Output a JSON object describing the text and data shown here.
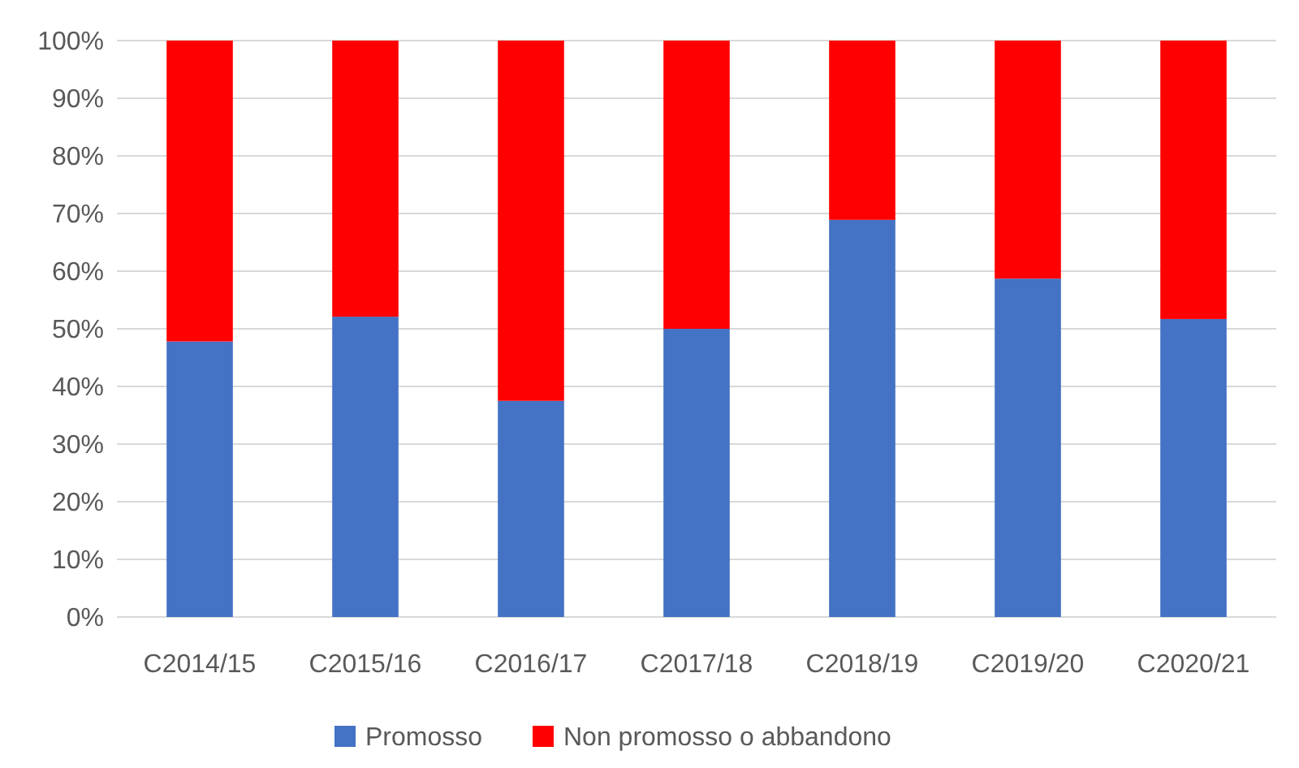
{
  "chart_data": {
    "type": "bar",
    "stacked": true,
    "categories": [
      "C2014/15",
      "C2015/16",
      "C2016/17",
      "C2017/18",
      "C2018/19",
      "C2019/20",
      "C2020/21"
    ],
    "series": [
      {
        "name": "Promosso",
        "color": "#4472c4",
        "values": [
          47.8,
          52.1,
          37.5,
          50,
          68.9,
          58.7,
          51.7
        ]
      },
      {
        "name": "Non promosso o abbandono",
        "color": "#ff0000",
        "values": [
          52.2,
          47.9,
          62.5,
          50,
          31.1,
          41.3,
          48.3
        ]
      }
    ],
    "ylim": [
      0,
      100
    ],
    "yticks": [
      {
        "value": 0,
        "label": "0%"
      },
      {
        "value": 10,
        "label": "10%"
      },
      {
        "value": 20,
        "label": "20%"
      },
      {
        "value": 30,
        "label": "30%"
      },
      {
        "value": 40,
        "label": "40%"
      },
      {
        "value": 50,
        "label": "50%"
      },
      {
        "value": 60,
        "label": "60%"
      },
      {
        "value": 70,
        "label": "70%"
      },
      {
        "value": 80,
        "label": "80%"
      },
      {
        "value": 90,
        "label": "90%"
      },
      {
        "value": 100,
        "label": "100%"
      }
    ],
    "grid": "y",
    "legend": "bottom"
  }
}
